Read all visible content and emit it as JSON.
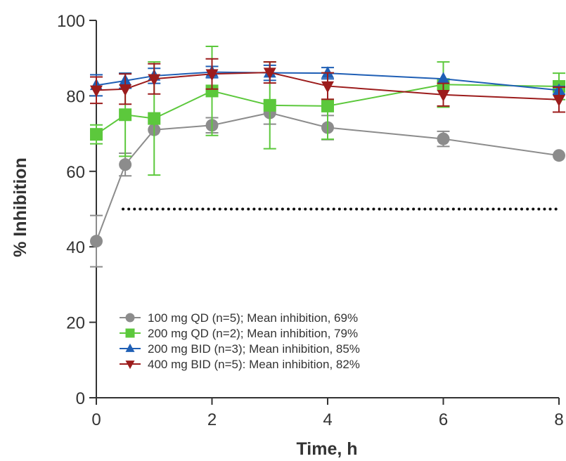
{
  "chart_data": {
    "type": "line",
    "xlabel": "Time, h",
    "ylabel": "% Inhibition",
    "xlim": [
      0,
      8
    ],
    "ylim": [
      0,
      100
    ],
    "x_ticks": [
      0,
      2,
      4,
      6,
      8
    ],
    "y_ticks": [
      0,
      20,
      40,
      60,
      80,
      100
    ],
    "grid": false,
    "legend_position": "bottom-left",
    "reference_line": {
      "y": 50,
      "style": "dotted"
    },
    "series": [
      {
        "name": "100 mg QD (n=5); Mean inhibition, 69%",
        "color": "#8c8c8c",
        "marker": "circle",
        "x": [
          0,
          0.5,
          1,
          2,
          3,
          4,
          6,
          8
        ],
        "y": [
          41.5,
          61.8,
          71.0,
          72.2,
          75.5,
          71.6,
          68.6,
          64.2
        ],
        "err": [
          6.8,
          3.0,
          0,
          2.0,
          3.0,
          3.2,
          2.0,
          0
        ]
      },
      {
        "name": "200 mg QD (n=2); Mean inhibition, 79%",
        "color": "#5cc83c",
        "marker": "square",
        "x": [
          0,
          0.5,
          1,
          2,
          3,
          4,
          6,
          8
        ],
        "y": [
          69.8,
          75.0,
          74.0,
          81.3,
          77.5,
          77.3,
          83.0,
          82.5
        ],
        "err": [
          2.5,
          11.0,
          15.0,
          11.8,
          11.5,
          8.8,
          6.0,
          3.5
        ]
      },
      {
        "name": "200 mg BID (n=3); Mean inhibition, 85%",
        "color": "#1f5fb5",
        "marker": "triangle-up",
        "x": [
          0,
          0.5,
          1,
          2,
          3,
          4,
          6,
          8
        ],
        "y": [
          82.8,
          84.0,
          85.3,
          86.3,
          86.1,
          86.0,
          84.5,
          81.5
        ],
        "err": [
          2.8,
          2.0,
          2.0,
          1.5,
          2.0,
          1.5,
          0,
          1.0
        ]
      },
      {
        "name": "400 mg BID (n=5): Mean inhibition, 82%",
        "color": "#9c1c1c",
        "marker": "triangle-down",
        "x": [
          0,
          0.5,
          1,
          2,
          3,
          4,
          6,
          8
        ],
        "y": [
          81.5,
          81.8,
          84.5,
          85.8,
          86.2,
          82.6,
          80.3,
          79.0
        ],
        "err": [
          3.5,
          4.0,
          4.0,
          4.0,
          2.8,
          3.5,
          3.0,
          3.3
        ]
      }
    ]
  }
}
